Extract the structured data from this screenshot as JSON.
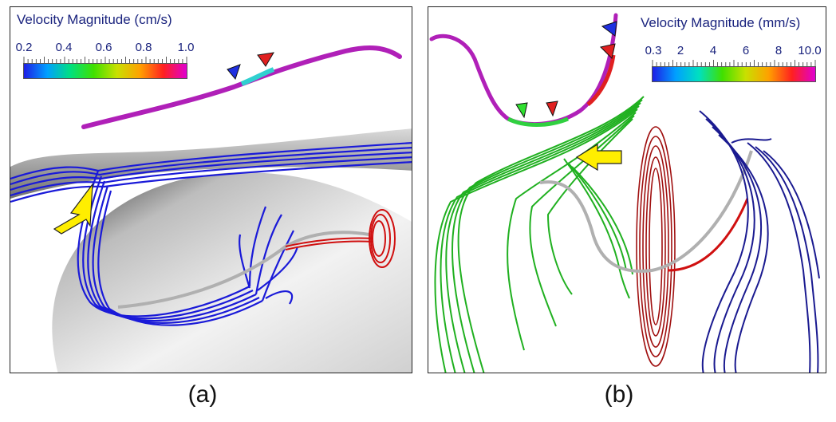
{
  "panels": [
    {
      "legend_title": "Velocity Magnitude (cm/s)",
      "ticks": [
        "0.2",
        "0.4",
        "0.6",
        "0.8",
        "1.0"
      ],
      "colorbar": [
        "#1e1ee6",
        "#00a0ff",
        "#00e080",
        "#40e000",
        "#c8e000",
        "#ffa000",
        "#ff2020",
        "#e000d0"
      ],
      "caption": "(a)"
    },
    {
      "legend_title": "Velocity Magnitude (mm/s)",
      "ticks": [
        "0.3",
        "2",
        "4",
        "6",
        "8",
        "10.0"
      ],
      "colorbar": [
        "#1e1ee6",
        "#00a0ff",
        "#00e0c0",
        "#40e000",
        "#c8e000",
        "#ffa000",
        "#ff2020",
        "#e000d0"
      ],
      "caption": "(b)"
    }
  ],
  "colors": {
    "streamline_blue": "#1a1ad8",
    "streamline_red": "#d01010",
    "streamline_green": "#20b020",
    "centerline_magenta": "#b020b8",
    "arrow_yellow": "#ffee00",
    "marker_blue": "#2030e0",
    "marker_red": "#e02020",
    "marker_green": "#30e030"
  }
}
